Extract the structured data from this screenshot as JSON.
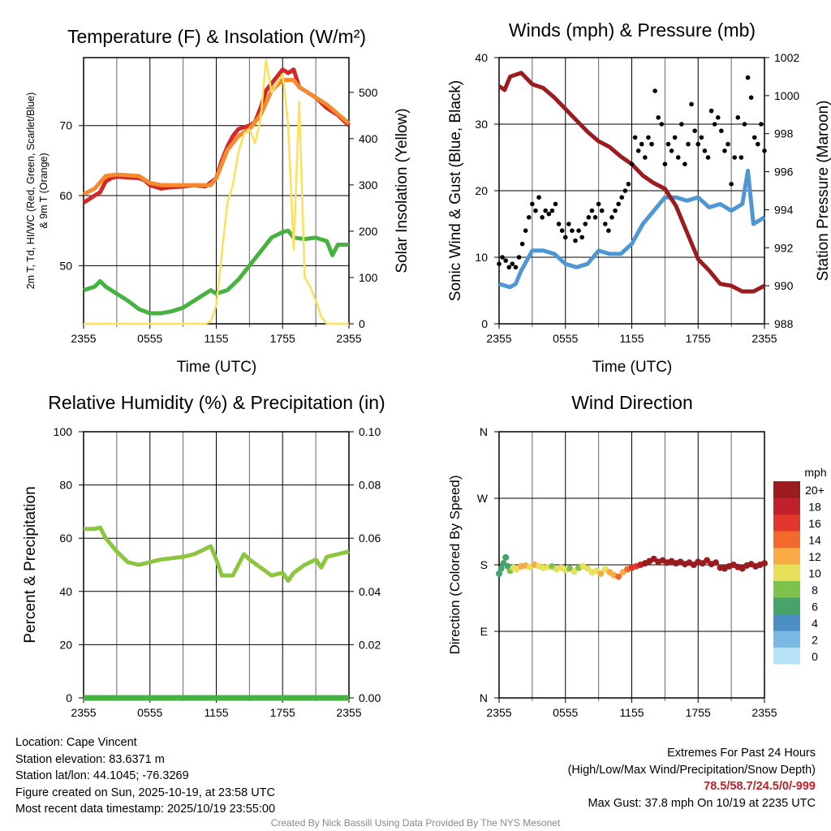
{
  "chart_data": [
    {
      "type": "line",
      "title": "Temperature (F) & Insolation (W/m²)",
      "xlabel": "Time (UTC)",
      "ylabel": "2m T, Td, HI/WC (Red, Green, Scarlet/Blue)",
      "ylabel2": "& 9m T (Orange)",
      "y2label": "Solar Insolation (Yellow)",
      "x_ticks": [
        "2355",
        "0555",
        "1155",
        "1755",
        "2355"
      ],
      "ylim": [
        41.7,
        79.7
      ],
      "y_ticks": [
        50,
        60,
        70
      ],
      "y2lim": [
        0,
        575
      ],
      "y2_ticks": [
        0,
        100,
        200,
        300,
        400,
        500
      ],
      "series": [
        {
          "name": "2m Temperature",
          "color": "#d42727",
          "axis": "left",
          "x": [
            0,
            0.5,
            1,
            1.5,
            2,
            2.5,
            3,
            4,
            5,
            5.5,
            6,
            7,
            8,
            9,
            10,
            11,
            12,
            12.5,
            13,
            13.5,
            14,
            15,
            15.5,
            16,
            16.5,
            17,
            17.5,
            18,
            18.5,
            19,
            19.5,
            20,
            21,
            22,
            23,
            24
          ],
          "values": [
            59,
            59.5,
            60,
            60.5,
            62,
            62.5,
            62.7,
            62.6,
            62.5,
            62.2,
            61.5,
            61,
            61.2,
            61.3,
            61.5,
            61.3,
            62.5,
            65,
            67,
            68.5,
            69.5,
            70,
            70.5,
            72.5,
            75,
            76,
            77,
            78,
            77.5,
            78,
            75.5,
            75,
            74,
            72.5,
            71.5,
            70
          ]
        },
        {
          "name": "9m Temperature",
          "color": "#f58a2e",
          "axis": "left",
          "x": [
            0,
            1,
            2,
            3,
            5,
            6,
            7,
            10,
            11.5,
            12,
            13,
            14,
            15,
            16,
            17,
            18,
            19,
            19.5,
            20,
            22,
            24
          ],
          "values": [
            60.2,
            61,
            62.8,
            63,
            62.8,
            61.8,
            61.5,
            61.5,
            61.5,
            62.5,
            66.5,
            68.5,
            69.5,
            71.5,
            75,
            76.5,
            76.5,
            75.5,
            75,
            73,
            70.3
          ]
        },
        {
          "name": "Dew Point",
          "color": "#46b340",
          "axis": "left",
          "x": [
            0,
            1,
            1.5,
            2,
            3,
            4,
            5,
            6,
            7,
            8,
            9,
            10,
            11,
            11.5,
            12,
            13,
            14,
            15,
            16,
            17,
            18,
            18.5,
            19,
            20,
            21,
            22,
            22.5,
            23,
            24
          ],
          "values": [
            46.5,
            47,
            47.8,
            47,
            46,
            45,
            43.8,
            43.2,
            43.2,
            43.5,
            44,
            45,
            46,
            46.5,
            46,
            46.5,
            48,
            50,
            52,
            54,
            54.8,
            55,
            54,
            53.8,
            54,
            53.5,
            51.5,
            53,
            53
          ]
        },
        {
          "name": "Solar Insolation",
          "color": "#fbe15a",
          "axis": "right",
          "x": [
            0,
            11,
            11.5,
            12,
            12.5,
            13,
            13.5,
            14,
            14.5,
            15,
            15.5,
            16,
            16.5,
            17,
            17.5,
            18,
            18.5,
            19,
            19.5,
            20,
            20.5,
            21,
            21.5,
            22,
            24
          ],
          "values": [
            0,
            0,
            5,
            40,
            150,
            260,
            300,
            370,
            410,
            420,
            390,
            440,
            570,
            500,
            520,
            540,
            430,
            160,
            480,
            100,
            80,
            50,
            15,
            0,
            0
          ]
        }
      ]
    },
    {
      "type": "line",
      "title": "Winds (mph) & Pressure (mb)",
      "xlabel": "Time (UTC)",
      "ylabel": "Sonic Wind & Gust (Blue, Black)",
      "y2label": "Station Pressure (Maroon)",
      "x_ticks": [
        "2355",
        "0555",
        "1155",
        "1755",
        "2355"
      ],
      "ylim": [
        0,
        40
      ],
      "y_ticks": [
        0,
        10,
        20,
        30,
        40
      ],
      "y2lim": [
        988,
        1002
      ],
      "y2_ticks": [
        988,
        990,
        992,
        994,
        996,
        998,
        1000,
        1002
      ],
      "series": [
        {
          "name": "Sonic Wind",
          "color": "#4f97d3",
          "axis": "left",
          "x": [
            0,
            1,
            1.5,
            2,
            3,
            4,
            5,
            6,
            7,
            8,
            9,
            10,
            11,
            12,
            13,
            14,
            15,
            16,
            17,
            18,
            19,
            20,
            21,
            22,
            22.5,
            23,
            24
          ],
          "values": [
            6,
            5.5,
            6,
            8,
            11,
            11,
            10.5,
            9,
            8.5,
            9,
            11,
            10.5,
            10.5,
            12,
            15,
            17,
            19,
            19,
            18.5,
            19,
            17.5,
            18,
            17,
            18,
            23,
            15,
            16
          ]
        },
        {
          "name": "Station Pressure",
          "color": "#9b1b1e",
          "axis": "right",
          "x": [
            0,
            0.5,
            1,
            2,
            3,
            4,
            5,
            6,
            7,
            8,
            9,
            10,
            11,
            12,
            13,
            14,
            15,
            16,
            17,
            18,
            19,
            20,
            21,
            22,
            23,
            24
          ],
          "values": [
            1000.5,
            1000.3,
            1001,
            1001.2,
            1000.6,
            1000.4,
            999.9,
            999.3,
            998.7,
            998.1,
            997.6,
            997.3,
            996.8,
            996.4,
            995.8,
            995.4,
            995.1,
            994.2,
            992.8,
            991.4,
            990.8,
            990.1,
            990,
            989.7,
            989.7,
            990
          ]
        }
      ],
      "gusts": {
        "name": "Gust",
        "color": "#000000",
        "x": [
          0,
          0.3,
          0.6,
          0.9,
          1.2,
          1.5,
          1.8,
          2.1,
          2.4,
          2.7,
          3,
          3.3,
          3.6,
          3.9,
          4.2,
          4.5,
          4.8,
          5.1,
          5.4,
          5.7,
          6,
          6.3,
          6.6,
          6.9,
          7.2,
          7.5,
          7.8,
          8.1,
          8.4,
          8.7,
          9,
          9.3,
          9.6,
          9.9,
          10.2,
          10.5,
          10.8,
          11.1,
          11.4,
          11.7,
          12,
          12.3,
          12.6,
          12.9,
          13.2,
          13.5,
          13.8,
          14.1,
          14.4,
          14.7,
          15,
          15.3,
          15.6,
          15.9,
          16.2,
          16.5,
          16.8,
          17.1,
          17.4,
          17.7,
          18,
          18.3,
          18.6,
          18.9,
          19.2,
          19.5,
          19.8,
          20.1,
          20.4,
          20.7,
          21,
          21.3,
          21.6,
          21.9,
          22.2,
          22.5,
          22.8,
          23.1,
          23.4,
          23.7,
          24
        ],
        "values": [
          9,
          10,
          9.5,
          8.5,
          9,
          8.5,
          10,
          12,
          14,
          16,
          18,
          17,
          19,
          16,
          17,
          16.5,
          17,
          18,
          15,
          14,
          13,
          15,
          14,
          12.5,
          14,
          13,
          15,
          16,
          17,
          16,
          18,
          17,
          15,
          14,
          16,
          17,
          18,
          19,
          20,
          21,
          24,
          28,
          26,
          27,
          25,
          28,
          27,
          35,
          31,
          30,
          24,
          27,
          26,
          28,
          25,
          30,
          24,
          27,
          33,
          29,
          27,
          28,
          26,
          25,
          32,
          30,
          31,
          29,
          26,
          27,
          21,
          25,
          31,
          25,
          30,
          37,
          34,
          28,
          27,
          30,
          26
        ]
      }
    },
    {
      "type": "line",
      "title": "Relative Humidity (%) & Precipitation (in)",
      "xlabel": "",
      "ylabel": "Percent & Precipitation",
      "x_ticks": [
        "2355",
        "0555",
        "1155",
        "1755",
        "2355"
      ],
      "ylim": [
        0,
        100
      ],
      "y_ticks": [
        0,
        20,
        40,
        60,
        80,
        100
      ],
      "y2lim": [
        0,
        0.1
      ],
      "y2_ticks": [
        "0.00",
        "0.02",
        "0.04",
        "0.06",
        "0.08",
        "0.10"
      ],
      "series": [
        {
          "name": "Relative Humidity",
          "color": "#8cc63f",
          "axis": "left",
          "x": [
            0,
            1,
            1.5,
            2,
            3,
            4,
            5,
            6,
            7,
            8,
            9,
            10,
            11,
            11.5,
            12,
            12.5,
            13.5,
            14,
            14.5,
            15,
            16,
            17,
            18,
            18.5,
            19,
            20,
            21,
            21.5,
            22,
            23,
            24
          ],
          "values": [
            63.5,
            63.5,
            64,
            60,
            55,
            51,
            50,
            51,
            52,
            52.5,
            53,
            54,
            56,
            57,
            52,
            46,
            46,
            50,
            54,
            52,
            49,
            46,
            47,
            44,
            47,
            50,
            52,
            49,
            53,
            54,
            55
          ]
        },
        {
          "name": "Precipitation",
          "color": "#46b340",
          "axis": "right",
          "x": [
            0,
            24
          ],
          "values": [
            0,
            0
          ]
        }
      ]
    },
    {
      "type": "scatter",
      "title": "Wind Direction",
      "ylabel": "Direction (Colored By Speed)",
      "x_ticks": [
        "2355",
        "0555",
        "1155",
        "1755",
        "2355"
      ],
      "ylim": [
        0,
        360
      ],
      "y_ticks": [
        "N",
        "E",
        "S",
        "W",
        "N"
      ],
      "points": {
        "x": [
          0,
          0.2,
          0.4,
          0.6,
          0.8,
          1,
          1.3,
          1.6,
          2,
          2.4,
          2.8,
          3.2,
          3.6,
          4,
          4.4,
          4.8,
          5.2,
          5.6,
          6,
          6.4,
          6.8,
          7.2,
          7.6,
          8,
          8.4,
          8.8,
          9.2,
          9.6,
          10,
          10.4,
          10.8,
          11.2,
          11.6,
          12,
          12.4,
          12.8,
          13.2,
          13.6,
          14,
          14.4,
          14.8,
          15.2,
          15.6,
          16,
          16.4,
          16.8,
          17.2,
          17.6,
          18,
          18.4,
          18.8,
          19.2,
          19.6,
          20,
          20.4,
          20.8,
          21.2,
          21.6,
          22,
          22.4,
          22.8,
          23.2,
          23.6,
          24
        ],
        "dir": [
          168,
          175,
          182,
          190,
          178,
          172,
          176,
          174,
          178,
          179,
          177,
          180,
          178,
          176,
          177,
          178,
          174,
          176,
          173,
          175,
          171,
          176,
          178,
          175,
          170,
          172,
          168,
          174,
          170,
          166,
          164,
          170,
          174,
          176,
          178,
          180,
          182,
          185,
          188,
          184,
          186,
          183,
          185,
          182,
          184,
          181,
          183,
          180,
          184,
          182,
          186,
          181,
          183,
          176,
          175,
          178,
          180,
          177,
          175,
          179,
          181,
          178,
          180,
          182
        ],
        "speed": [
          6,
          6,
          6,
          6,
          6,
          8,
          10,
          11,
          12,
          12,
          11,
          12,
          10,
          11,
          10,
          9,
          10,
          11,
          10,
          9,
          10,
          9,
          10,
          10,
          11,
          10,
          12,
          11,
          12,
          13,
          14,
          12,
          15,
          16,
          17,
          18,
          19,
          20,
          20,
          20,
          21,
          20,
          20,
          21,
          20,
          20,
          21,
          20,
          20,
          21,
          20,
          20,
          21,
          20,
          20,
          21,
          20,
          20,
          21,
          20,
          20,
          21,
          20,
          20
        ]
      },
      "legend": {
        "title": "mph",
        "labels": [
          "20+",
          "18",
          "16",
          "14",
          "12",
          "10",
          "8",
          "6",
          "4",
          "2",
          "0"
        ],
        "colors": [
          "#9b1b1e",
          "#c0202a",
          "#e0362b",
          "#f26a2b",
          "#f8ab44",
          "#e7e05a",
          "#7dc24b",
          "#45a36b",
          "#4a8fc6",
          "#7ab8e4",
          "#b7e3f7"
        ]
      }
    }
  ],
  "info": {
    "location": "Location: Cape Vincent",
    "elevation": "Station elevation: 83.6371 m",
    "latlon": "Station lat/lon: 44.1045; -76.3269",
    "created": "Figure created on Sun, 2025-10-19, at 23:58 UTC",
    "recent": "Most recent data timestamp: 2025/10/19 23:55:00"
  },
  "extremes": {
    "title": "Extremes For Past 24 Hours",
    "subtitle": "(High/Low/Max Wind/Precipitation/Snow Depth)",
    "values": "78.5/58.7/24.5/0/-999",
    "max_gust": "Max Gust: 37.8 mph On 10/19 at 2235 UTC"
  },
  "credit": "Created By Nick Bassill Using Data Provided By The NYS Mesonet"
}
